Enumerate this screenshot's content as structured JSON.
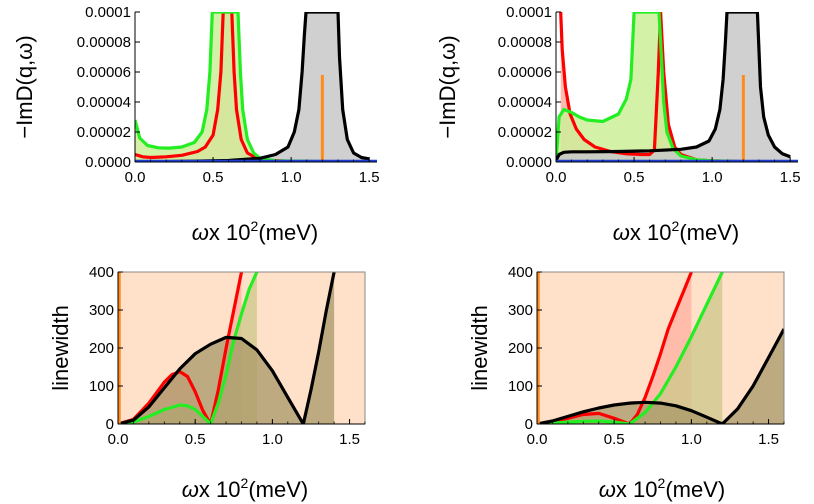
{
  "chart_data": [
    {
      "type": "line",
      "ylabel": "−ImD(q,ω)",
      "xlabel": {
        "omega": "ω",
        "x10": "x 10",
        "exp": "2",
        "unit": "(meV)"
      },
      "xlim": [
        0,
        1.55
      ],
      "ylim": [
        0,
        0.0001
      ],
      "xticks": [
        "0.0",
        "0.5",
        "1.0",
        "1.5"
      ],
      "yticks": [
        "0.0000",
        "0.00002",
        "0.00004",
        "0.00006",
        "0.00008",
        "0.0001"
      ],
      "marker_line": {
        "x": 1.2,
        "ymax": 5.8e-05,
        "color": "#ff8c1a"
      },
      "series": [
        {
          "color": "#ff0000",
          "fill": "#ffb0a0",
          "x": [
            0,
            0.05,
            0.1,
            0.2,
            0.3,
            0.4,
            0.45,
            0.5,
            0.53,
            0.55,
            0.565,
            0.62,
            0.635,
            0.65,
            0.68,
            0.72,
            0.8,
            1.0,
            1.2,
            1.5
          ],
          "y": [
            5e-06,
            3.5e-06,
            3e-06,
            3.5e-06,
            4.5e-06,
            7e-06,
            1e-05,
            1.8e-05,
            3.5e-05,
            6e-05,
            0.0001,
            0.0001,
            6e-05,
            3.5e-05,
            1.5e-05,
            6e-06,
            1.5e-06,
            5e-07,
            3e-07,
            2e-07
          ]
        },
        {
          "color": "#22ee22",
          "fill": "#ccee99",
          "x": [
            0,
            0.03,
            0.08,
            0.15,
            0.22,
            0.3,
            0.38,
            0.43,
            0.46,
            0.48,
            0.495,
            0.51,
            0.66,
            0.675,
            0.69,
            0.72,
            0.76,
            0.8,
            0.9,
            1.2,
            1.5
          ],
          "y": [
            2.8e-05,
            1.6e-05,
            1.1e-05,
            9.5e-06,
            9.3e-06,
            1e-05,
            1.3e-05,
            2e-05,
            3.5e-05,
            6e-05,
            0.0001,
            0.0001,
            0.0001,
            6e-05,
            3.5e-05,
            1.5e-05,
            6e-06,
            2.5e-06,
            8e-07,
            3e-07,
            2e-07
          ]
        },
        {
          "color": "#000000",
          "fill": "#c8c8c8",
          "x": [
            0,
            0.2,
            0.4,
            0.6,
            0.8,
            0.9,
            0.98,
            1.02,
            1.05,
            1.07,
            1.085,
            1.095,
            1.3,
            1.31,
            1.33,
            1.36,
            1.4,
            1.45,
            1.5
          ],
          "y": [
            1e-07,
            3e-07,
            6e-07,
            1e-06,
            2.5e-06,
            5e-06,
            1e-05,
            2e-05,
            3.5e-05,
            6e-05,
            8.5e-05,
            0.0001,
            0.0001,
            7e-05,
            3.5e-05,
            1.5e-05,
            6e-06,
            3e-06,
            2e-06
          ]
        }
      ]
    },
    {
      "type": "line",
      "ylabel": "−ImD(q,ω)",
      "xlabel": {
        "omega": "ω",
        "x10": "x 10",
        "exp": "2",
        "unit": "(meV)"
      },
      "xlim": [
        0,
        1.55
      ],
      "ylim": [
        0,
        0.0001
      ],
      "xticks": [
        "0.0",
        "0.5",
        "1.0",
        "1.5"
      ],
      "yticks": [
        "0.0000",
        "0.00002",
        "0.00004",
        "0.00006",
        "0.00008",
        "0.0001"
      ],
      "marker_line": {
        "x": 1.2,
        "ymax": 5.8e-05,
        "color": "#ff8c1a"
      },
      "series": [
        {
          "color": "#ff0000",
          "fill": "#ffb0a0",
          "x": [
            0.03,
            0.04,
            0.06,
            0.09,
            0.13,
            0.18,
            0.25,
            0.35,
            0.45,
            0.55,
            0.6,
            0.63,
            0.655,
            0.67,
            0.69,
            0.72,
            0.76,
            0.8,
            0.9,
            1.0,
            1.2,
            1.5
          ],
          "y": [
            0.0001,
            7.5e-05,
            5e-05,
            3.2e-05,
            2.2e-05,
            1.5e-05,
            1e-05,
            7e-06,
            5.5e-06,
            5e-06,
            5e-06,
            8e-06,
            6e-05,
            0.0001,
            6e-05,
            2.5e-05,
            1e-05,
            5e-06,
            1.5e-06,
            7e-07,
            3e-07,
            2e-07
          ]
        },
        {
          "color": "#22ee22",
          "fill": "#ccee99",
          "x": [
            0,
            0.01,
            0.02,
            0.05,
            0.1,
            0.15,
            0.2,
            0.3,
            0.4,
            0.45,
            0.48,
            0.5,
            0.52,
            0.6,
            0.66,
            0.68,
            0.69,
            0.71,
            0.75,
            0.8,
            0.9,
            1.0,
            1.2,
            1.5
          ],
          "y": [
            1e-06,
            1.5e-05,
            3e-05,
            3.5e-05,
            3.3e-05,
            3e-05,
            2.8e-05,
            2.7e-05,
            3.2e-05,
            4.2e-05,
            5.5e-05,
            0.0001,
            0.0001,
            0.0001,
            0.0001,
            6e-05,
            4e-05,
            2e-05,
            9e-06,
            4e-06,
            1.5e-06,
            7e-07,
            3e-07,
            2e-07
          ]
        },
        {
          "color": "#000000",
          "fill": "#c8c8c8",
          "x": [
            0,
            0.02,
            0.05,
            0.1,
            0.2,
            0.4,
            0.6,
            0.8,
            0.9,
            0.98,
            1.02,
            1.05,
            1.07,
            1.085,
            1.095,
            1.29,
            1.31,
            1.33,
            1.36,
            1.4,
            1.45,
            1.5
          ],
          "y": [
            1e-06,
            5e-06,
            6.5e-06,
            6.8e-06,
            6.8e-06,
            7e-06,
            7.5e-06,
            8.5e-06,
            1e-05,
            1.4e-05,
            2.2e-05,
            3.5e-05,
            5.5e-05,
            8e-05,
            0.0001,
            0.0001,
            5e-05,
            3e-05,
            1.8e-05,
            1e-05,
            5.5e-06,
            3.5e-06
          ]
        }
      ]
    },
    {
      "type": "area",
      "ylabel": "linewidth",
      "xlabel": {
        "omega": "ω",
        "x10": "x 10",
        "exp": "2",
        "unit": "(meV)"
      },
      "xlim": [
        0,
        1.6
      ],
      "ylim": [
        0,
        400
      ],
      "xticks": [
        "0.0",
        "0.5",
        "1.0",
        "1.5"
      ],
      "yticks": [
        "0",
        "100",
        "200",
        "300",
        "400"
      ],
      "background": "#ffe0c8",
      "boundary_color": "#ff8c1a",
      "series": [
        {
          "color": "#ff0000",
          "fill": "#ffb0a0",
          "x": [
            0,
            0.1,
            0.2,
            0.3,
            0.35,
            0.4,
            0.45,
            0.5,
            0.55,
            0.6,
            0.65,
            0.7,
            0.75,
            0.8
          ],
          "y": [
            0,
            12,
            55,
            110,
            130,
            138,
            125,
            85,
            35,
            0,
            90,
            200,
            300,
            400
          ]
        },
        {
          "color": "#22ee22",
          "fill": "#ccc88a",
          "x": [
            0,
            0.1,
            0.2,
            0.3,
            0.4,
            0.45,
            0.5,
            0.55,
            0.6,
            0.65,
            0.7,
            0.75,
            0.8,
            0.85,
            0.9
          ],
          "y": [
            0,
            5,
            20,
            38,
            50,
            48,
            38,
            20,
            0,
            55,
            130,
            220,
            290,
            355,
            400
          ]
        },
        {
          "color": "#000000",
          "fill": "#a89868",
          "x": [
            0,
            0.1,
            0.2,
            0.3,
            0.4,
            0.5,
            0.6,
            0.7,
            0.8,
            0.9,
            1.0,
            1.1,
            1.2,
            1.25,
            1.3,
            1.35,
            1.4
          ],
          "y": [
            0,
            10,
            45,
            95,
            145,
            185,
            210,
            228,
            225,
            195,
            140,
            70,
            0,
            90,
            190,
            300,
            400
          ]
        }
      ]
    },
    {
      "type": "area",
      "ylabel": "linewidth",
      "xlabel": {
        "omega": "ω",
        "x10": "x 10",
        "exp": "2",
        "unit": "(meV)"
      },
      "xlim": [
        0,
        1.6
      ],
      "ylim": [
        0,
        400
      ],
      "xticks": [
        "0.0",
        "0.5",
        "1.0",
        "1.5"
      ],
      "yticks": [
        "0",
        "100",
        "200",
        "300",
        "400"
      ],
      "background": "#ffe0c8",
      "boundary_color": "#ff8c1a",
      "series": [
        {
          "color": "#ff0000",
          "fill": "#ffb0a0",
          "x": [
            0,
            0.1,
            0.2,
            0.3,
            0.4,
            0.5,
            0.6,
            0.65,
            0.7,
            0.75,
            0.8,
            0.85,
            0.9,
            0.95,
            1.0
          ],
          "y": [
            0,
            5,
            15,
            25,
            28,
            15,
            0,
            25,
            70,
            125,
            185,
            250,
            300,
            350,
            400
          ]
        },
        {
          "color": "#22ee22",
          "fill": "#ccc88a",
          "x": [
            0,
            0.1,
            0.2,
            0.3,
            0.4,
            0.5,
            0.6,
            0.7,
            0.8,
            0.9,
            1.0,
            1.1,
            1.2
          ],
          "y": [
            0,
            2,
            5,
            7,
            8,
            5,
            0,
            30,
            80,
            150,
            230,
            315,
            400
          ]
        },
        {
          "color": "#000000",
          "fill": "#a89868",
          "x": [
            0,
            0.1,
            0.2,
            0.3,
            0.4,
            0.5,
            0.6,
            0.7,
            0.8,
            0.9,
            1.0,
            1.1,
            1.2,
            1.3,
            1.4,
            1.5,
            1.6
          ],
          "y": [
            0,
            8,
            20,
            32,
            42,
            50,
            55,
            57,
            55,
            48,
            35,
            18,
            0,
            40,
            100,
            175,
            250
          ]
        }
      ]
    }
  ]
}
